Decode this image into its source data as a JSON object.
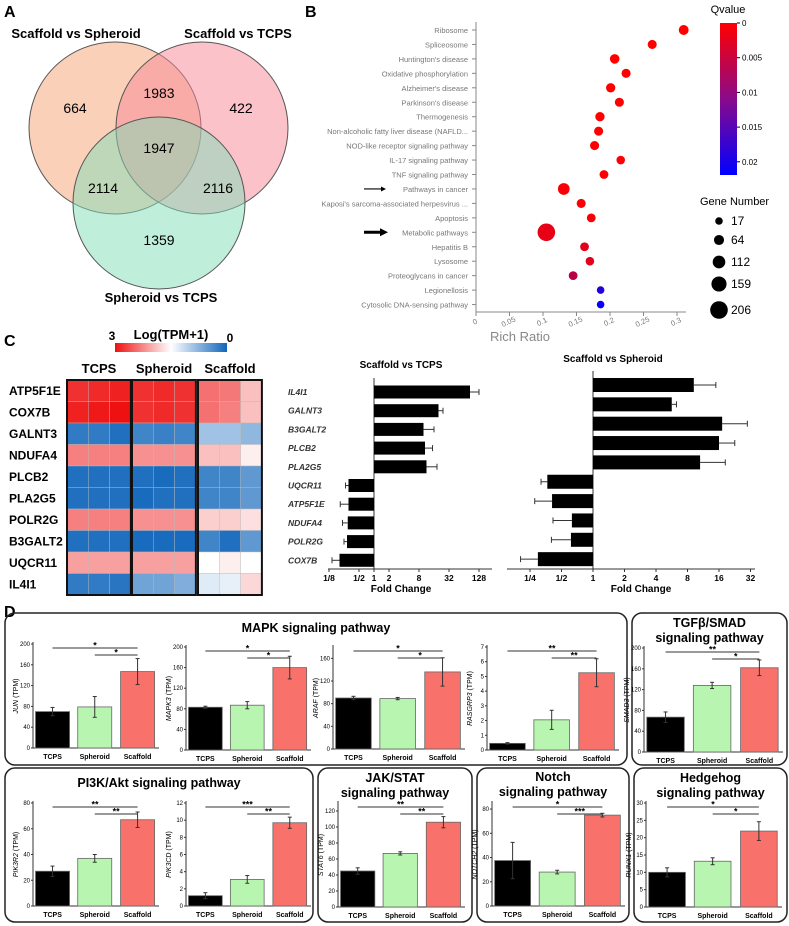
{
  "panel_labels": {
    "a": "A",
    "b": "B",
    "c": "C",
    "d": "D"
  },
  "chart_data": [
    {
      "type": "venn",
      "sets": [
        "Scaffold vs Spheroid",
        "Scaffold vs TCPS",
        "Spheroid vs TCPS"
      ],
      "regions": {
        "scaffold_spheroid_only": "664",
        "scaffold_tcps_only": "422",
        "spheroid_tcps_only": "1359",
        "ss_st_shared": "1983",
        "ss_sp_shared": "2114",
        "st_sp_shared": "2116",
        "all_three": "1947"
      },
      "colors": [
        "#f6a272",
        "#f78595",
        "#80ddb8"
      ]
    },
    {
      "type": "scatter",
      "xlabel": "Rich Ratio",
      "xticks": [
        "0",
        "0.05",
        "0.1",
        "0.15",
        "0.2",
        "0.25",
        "0.3"
      ],
      "xtick_values": [
        0,
        0.05,
        0.1,
        0.15,
        0.2,
        0.25,
        0.3
      ],
      "categories": [
        "Ribosome",
        "Spliceosome",
        "Huntington's disease",
        "Oxidative phosphorylation",
        "Alzheimer's disease",
        "Parkinson's disease",
        "Thermogenesis",
        "Non-alcoholic fatty liver disease (NAFLD...",
        "NOD-like receptor signaling pathway",
        "IL-17 signaling pathway",
        "TNF signaling pathway",
        "Pathways in cancer",
        "Kaposi's sarcoma-associated herpesvirus ...",
        "Apoptosis",
        "Metabolic pathways",
        "Hepatitis B",
        "Lysosome",
        "Proteoglycans in cancer",
        "Legionellosis",
        "Cytosolic DNA-sensing pathway"
      ],
      "rich_ratio": [
        0.31,
        0.263,
        0.207,
        0.224,
        0.201,
        0.214,
        0.185,
        0.183,
        0.177,
        0.216,
        0.191,
        0.131,
        0.157,
        0.172,
        0.105,
        0.162,
        0.17,
        0.145,
        0.186,
        0.186
      ],
      "qvalue": [
        0,
        0,
        0,
        0,
        0,
        0,
        0,
        0,
        0.0003,
        0.0003,
        0.0003,
        0.0005,
        0.0005,
        0.0005,
        0.002,
        0.0025,
        0.0025,
        0.006,
        0.019,
        0.021
      ],
      "gene_number": [
        60,
        45,
        55,
        45,
        50,
        45,
        50,
        45,
        45,
        35,
        40,
        95,
        45,
        40,
        206,
        40,
        35,
        40,
        17,
        17
      ],
      "arrows": [
        "Pathways in cancer",
        "Metabolic pathways"
      ],
      "colorbar": {
        "title": "Qvalue",
        "ticks": [
          "0",
          "0.005",
          "0.01",
          "0.015",
          "0.02"
        ],
        "tick_values": [
          0,
          0.005,
          0.01,
          0.015,
          0.02
        ],
        "range": [
          0,
          0.0219
        ],
        "colors": [
          "#ff0000",
          "#8a0a8a",
          "#0000ff"
        ]
      },
      "size_legend": {
        "title": "Gene Number",
        "values": [
          17,
          64,
          112,
          159,
          206
        ]
      }
    },
    {
      "type": "heatmap",
      "colorbar": {
        "title": "Log(TPM+1)",
        "max_label": "3",
        "min_label": "0",
        "range": [
          0,
          3
        ]
      },
      "groups": [
        "TCPS",
        "Spheroid",
        "Scaffold"
      ],
      "genes": [
        "ATP5F1E",
        "COX7B",
        "GALNT3",
        "NDUFA4",
        "PLCB2",
        "PLA2G5",
        "POLR2G",
        "B3GALT2",
        "UQCR11",
        "IL4I1"
      ],
      "values": [
        [
          2.8,
          2.85,
          2.9,
          2.8,
          2.85,
          2.8,
          2.4,
          2.35,
          1.9
        ],
        [
          2.9,
          2.95,
          3.0,
          2.8,
          2.85,
          2.8,
          2.4,
          2.3,
          1.9
        ],
        [
          0.2,
          0.2,
          0.1,
          0.3,
          0.25,
          0.3,
          0.9,
          0.9,
          0.8
        ],
        [
          2.3,
          2.3,
          2.3,
          2.2,
          2.2,
          2.2,
          1.9,
          1.9,
          1.6
        ],
        [
          0.1,
          0.1,
          0.1,
          0.1,
          0.05,
          0.1,
          0.3,
          0.3,
          0.5
        ],
        [
          0.1,
          0.1,
          0.1,
          0.05,
          0.1,
          0.1,
          0.3,
          0.3,
          0.5
        ],
        [
          2.3,
          2.3,
          2.3,
          2.2,
          2.2,
          2.2,
          1.8,
          1.8,
          1.7
        ],
        [
          0.1,
          0.1,
          0.1,
          0.05,
          0.05,
          0.05,
          0.3,
          0.1,
          0.5
        ],
        [
          2.1,
          2.1,
          2.1,
          2.1,
          2.1,
          2.1,
          1.5,
          1.6,
          1.5
        ],
        [
          0.2,
          0.2,
          0.15,
          0.6,
          0.6,
          0.7,
          1.3,
          1.35,
          1.75
        ]
      ]
    },
    {
      "type": "bar",
      "orientation": "horizontal",
      "title": "Scaffold vs TCPS",
      "xlabel": "Fold Change",
      "scale": "log2",
      "xticks": [
        "1/8",
        "1/2",
        "1",
        "2",
        "8",
        "32",
        "128"
      ],
      "xtick_log2": [
        -3,
        -1,
        0,
        1,
        3,
        5,
        7
      ],
      "categories": [
        "IL4I1",
        "GALNT3",
        "B3GALT2",
        "PLCB2",
        "PLA2G5",
        "UQCR11",
        "ATP5F1E",
        "NDUFA4",
        "POLR2G",
        "COX7B"
      ],
      "log2_fold_change": [
        6.4,
        4.3,
        3.3,
        3.4,
        3.5,
        -1.7,
        -1.7,
        -1.75,
        -1.8,
        -2.3
      ],
      "error": [
        0.6,
        0.3,
        0.7,
        0.5,
        0.7,
        0.2,
        0.55,
        0.35,
        0.2,
        0.5
      ]
    },
    {
      "type": "bar",
      "orientation": "horizontal",
      "title": "Scaffold vs Spheroid",
      "xlabel": "Fold Change",
      "scale": "log2",
      "xticks": [
        "1/4",
        "1/2",
        "1",
        "2",
        "4",
        "8",
        "16",
        "32"
      ],
      "xtick_log2": [
        -2,
        -1,
        0,
        1,
        2,
        3,
        4,
        5
      ],
      "categories": [
        "IL4I1",
        "GALNT3",
        "B3GALT2",
        "PLCB2",
        "PLA2G5",
        "UQCR11",
        "ATP5F1E",
        "NDUFA4",
        "POLR2G",
        "COX7B"
      ],
      "log2_fold_change": [
        3.2,
        2.5,
        4.1,
        4.0,
        3.4,
        -1.45,
        -1.3,
        -0.67,
        -0.7,
        -1.75
      ],
      "error": [
        0.7,
        0.15,
        0.8,
        0.5,
        0.8,
        0.2,
        0.55,
        0.6,
        0.62,
        0.55
      ]
    },
    {
      "type": "bar",
      "group": 0,
      "gene": "JUN",
      "ylabel_unit": " (TPM)",
      "categories": [
        "TCPS",
        "Spheroid",
        "Scaffold"
      ],
      "values": [
        70,
        79,
        147
      ],
      "error": [
        8,
        20,
        25
      ],
      "ylim": [
        0,
        200
      ],
      "yticks": [
        0,
        40,
        80,
        120,
        160,
        200
      ],
      "significance": [
        "*",
        "*"
      ]
    },
    {
      "type": "bar",
      "group": 0,
      "gene": "MAPK3",
      "ylabel_unit": " (TPM)",
      "categories": [
        "TCPS",
        "Spheroid",
        "Scaffold"
      ],
      "values": [
        83,
        87,
        160
      ],
      "error": [
        2,
        7,
        22
      ],
      "ylim": [
        0,
        200
      ],
      "yticks": [
        0,
        40,
        80,
        120,
        160,
        200
      ],
      "significance": [
        "*",
        "*"
      ]
    },
    {
      "type": "bar",
      "group": 0,
      "gene": "ARAF",
      "ylabel_unit": " (TPM)",
      "categories": [
        "TCPS",
        "Spheroid",
        "Scaffold"
      ],
      "values": [
        90,
        89,
        136
      ],
      "error": [
        3,
        2,
        25
      ],
      "ylim": [
        0,
        180
      ],
      "yticks": [
        0,
        40,
        80,
        120,
        160
      ],
      "significance": [
        "*",
        "*"
      ]
    },
    {
      "type": "bar",
      "group": 0,
      "gene": "RASGRP3",
      "ylabel_unit": " (TPM)",
      "categories": [
        "TCPS",
        "Spheroid",
        "Scaffold"
      ],
      "values": [
        0.45,
        2.05,
        5.25
      ],
      "error": [
        0.05,
        0.65,
        0.95
      ],
      "ylim": [
        0,
        7
      ],
      "yticks": [
        0,
        1,
        2,
        3,
        4,
        5,
        6,
        7
      ],
      "significance": [
        "**",
        "**"
      ]
    },
    {
      "type": "bar",
      "group": 1,
      "gene": "SMAD3",
      "ylabel_unit": " (TPM)",
      "categories": [
        "TCPS",
        "Spheroid",
        "Scaffold"
      ],
      "values": [
        67,
        128,
        162
      ],
      "error": [
        10,
        6,
        15
      ],
      "ylim": [
        0,
        200
      ],
      "yticks": [
        0,
        40,
        80,
        120,
        160,
        200
      ],
      "significance": [
        "**",
        "*"
      ]
    },
    {
      "type": "bar",
      "group": 2,
      "gene": "PIK3R2",
      "ylabel_unit": " (TPM)",
      "categories": [
        "TCPS",
        "Spheroid",
        "Scaffold"
      ],
      "values": [
        27,
        37,
        67
      ],
      "error": [
        4,
        3,
        6
      ],
      "ylim": [
        0,
        80
      ],
      "yticks": [
        0,
        20,
        40,
        60,
        80
      ],
      "significance": [
        "**",
        "**"
      ]
    },
    {
      "type": "bar",
      "group": 2,
      "gene": "PIK3CD",
      "ylabel_unit": " (TPM)",
      "categories": [
        "TCPS",
        "Spheroid",
        "Scaffold"
      ],
      "values": [
        1.2,
        3.1,
        9.7
      ],
      "error": [
        0.35,
        0.45,
        0.65
      ],
      "ylim": [
        0,
        12
      ],
      "yticks": [
        0,
        2,
        4,
        6,
        8,
        10,
        12
      ],
      "significance": [
        "***",
        "**"
      ]
    },
    {
      "type": "bar",
      "group": 3,
      "gene": "STAT6",
      "ylabel_unit": " (TPM)",
      "categories": [
        "TCPS",
        "Spheroid",
        "Scaffold"
      ],
      "values": [
        45,
        67,
        106
      ],
      "error": [
        4,
        2,
        7
      ],
      "ylim": [
        0,
        130
      ],
      "yticks": [
        0,
        20,
        40,
        60,
        80,
        100,
        120
      ],
      "significance": [
        "**",
        "**"
      ]
    },
    {
      "type": "bar",
      "group": 4,
      "gene": "NOTCH2",
      "ylabel_unit": " (TPM)",
      "categories": [
        "TCPS",
        "Spheroid",
        "Scaffold"
      ],
      "values": [
        37.5,
        28,
        75
      ],
      "error": [
        15,
        1.5,
        1.5
      ],
      "ylim": [
        0,
        85
      ],
      "yticks": [
        0,
        20,
        40,
        60,
        80
      ],
      "significance": [
        "*",
        "***"
      ]
    },
    {
      "type": "bar",
      "group": 5,
      "gene": "RUNX1",
      "ylabel_unit": " (TPM)",
      "categories": [
        "TCPS",
        "Spheroid",
        "Scaffold"
      ],
      "values": [
        10,
        13.2,
        21.9
      ],
      "error": [
        1.3,
        1,
        2.7
      ],
      "ylim": [
        0,
        30
      ],
      "yticks": [
        0,
        5,
        10,
        15,
        20,
        25,
        30
      ],
      "significance": [
        "*",
        "*"
      ]
    }
  ],
  "panel_d": {
    "groups": [
      {
        "title": [
          "MAPK signaling pathway"
        ]
      },
      {
        "title": [
          "TGFβ/SMAD",
          "signaling pathway"
        ]
      },
      {
        "title": [
          "PI3K/Akt signaling pathway"
        ]
      },
      {
        "title": [
          "JAK/STAT",
          "signaling pathway"
        ]
      },
      {
        "title": [
          "Notch",
          "signaling pathway"
        ]
      },
      {
        "title": [
          "Hedgehog",
          "signaling pathway"
        ]
      }
    ],
    "bar_colors": [
      "#000000",
      "#b8f5b0",
      "#f8716b"
    ]
  }
}
